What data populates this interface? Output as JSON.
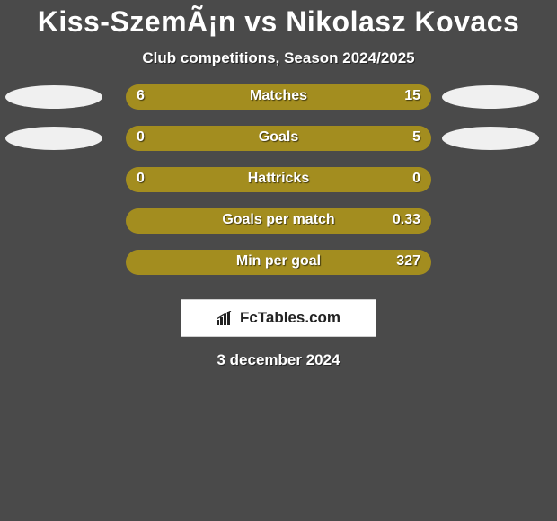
{
  "title": "Kiss-SzemÃ¡n vs Nikolasz Kovacs",
  "subtitle": "Club competitions, Season 2024/2025",
  "background_color": "#4a4a4a",
  "avatar": {
    "bg": "#f0f0f0"
  },
  "rows": [
    {
      "metric": "Matches",
      "left_value": "6",
      "right_value": "15",
      "left_pct": 28.6,
      "left_color": "#a38d1f",
      "right_color": "#a38d1f",
      "show_avatars": true
    },
    {
      "metric": "Goals",
      "left_value": "0",
      "right_value": "5",
      "left_pct": 0,
      "left_color": "#a38d1f",
      "right_color": "#a38d1f",
      "show_avatars": true
    },
    {
      "metric": "Hattricks",
      "left_value": "0",
      "right_value": "0",
      "left_pct": 50,
      "left_color": "#a38d1f",
      "right_color": "#a38d1f",
      "show_avatars": false
    },
    {
      "metric": "Goals per match",
      "left_value": "",
      "right_value": "0.33",
      "left_pct": 0,
      "left_color": "#a38d1f",
      "right_color": "#a38d1f",
      "show_avatars": false
    },
    {
      "metric": "Min per goal",
      "left_value": "",
      "right_value": "327",
      "left_pct": 0,
      "left_color": "#a38d1f",
      "right_color": "#a38d1f",
      "show_avatars": false
    }
  ],
  "brand": "FcTables.com",
  "date": "3 december 2024"
}
